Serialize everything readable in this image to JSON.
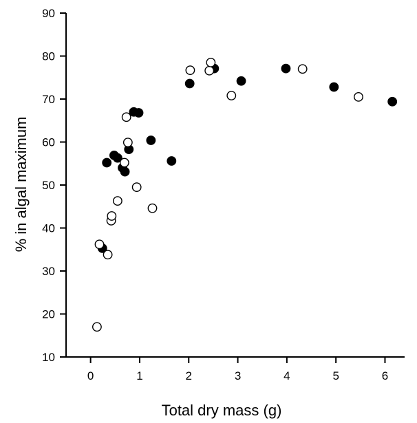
{
  "chart_data": {
    "type": "scatter",
    "title": "",
    "xlabel": "Total dry mass (g)",
    "ylabel": "% in algal maximum",
    "xlim": [
      -0.5,
      6.4
    ],
    "ylim": [
      10,
      90
    ],
    "xticks": [
      0,
      1,
      2,
      3,
      4,
      5,
      6
    ],
    "yticks": [
      10,
      20,
      30,
      40,
      50,
      60,
      70,
      80,
      90
    ],
    "grid": false,
    "legend": "none",
    "colors": {
      "axis": "#000000",
      "filled_marker": "#000000",
      "open_marker": "#ffffff"
    },
    "series": [
      {
        "marker": "filled-circle",
        "x": [
          0.24,
          0.33,
          0.48,
          0.55,
          0.65,
          0.7,
          0.78,
          0.88,
          0.98,
          1.23,
          1.65,
          2.02,
          2.52,
          3.07,
          3.98,
          4.96,
          6.15
        ],
        "y": [
          35.3,
          55.2,
          56.9,
          56.3,
          54.0,
          53.1,
          58.3,
          67.0,
          66.8,
          60.4,
          55.6,
          73.6,
          77.1,
          74.2,
          77.1,
          72.8,
          69.4
        ]
      },
      {
        "marker": "open-circle",
        "x": [
          0.13,
          0.18,
          0.35,
          0.42,
          0.43,
          0.55,
          0.69,
          0.73,
          0.76,
          0.94,
          1.26,
          2.03,
          2.42,
          2.45,
          2.87,
          4.32,
          5.46
        ],
        "y": [
          17.0,
          36.2,
          33.8,
          41.7,
          42.8,
          46.3,
          55.2,
          65.8,
          59.9,
          49.5,
          44.6,
          76.7,
          76.6,
          78.5,
          70.8,
          77.0,
          70.5
        ]
      }
    ]
  }
}
